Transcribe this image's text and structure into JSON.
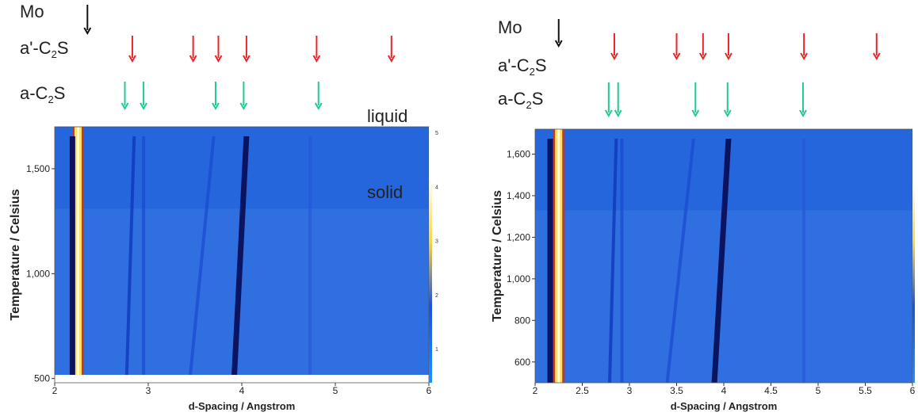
{
  "colors": {
    "mo_arrow": "#111111",
    "aprime_arrow": "#e8262a",
    "a_arrow": "#20c997",
    "map_background": "#2f6fe0"
  },
  "chart_data": [
    {
      "type": "heatmap",
      "panel": "left",
      "xlabel": "d-Spacing / Angstrom",
      "ylabel": "Temperature / Celsius",
      "xlim": [
        2,
        6
      ],
      "ylim": [
        480,
        1700
      ],
      "x_ticks": [
        "2",
        "3",
        "4",
        "5",
        "6"
      ],
      "y_ticks": [
        "500",
        "1,000",
        "1,500"
      ],
      "x_tick_values": [
        2,
        3,
        4,
        5,
        6
      ],
      "y_tick_values": [
        500,
        1000,
        1500
      ],
      "colorbar_ticks": [
        "1",
        "2",
        "3",
        "4",
        "5"
      ],
      "phase_labels": [
        "liquid",
        "solid"
      ],
      "marker_rows": [
        {
          "label_main": "Mo",
          "label_sub": "",
          "label_tail": "",
          "color": "#111111",
          "positions": [
            2.35
          ]
        },
        {
          "label_main": "a'-C",
          "label_sub": "2",
          "label_tail": "S",
          "color": "#e8262a",
          "positions": [
            2.83,
            3.48,
            3.75,
            4.05,
            4.8,
            5.6
          ]
        },
        {
          "label_main": "a-C",
          "label_sub": "2",
          "label_tail": "S",
          "color": "#20c997",
          "positions": [
            2.75,
            2.95,
            3.72,
            4.02,
            4.82
          ]
        }
      ],
      "bands": [
        {
          "d": 2.25,
          "d_top": 2.25,
          "intensity": 5
        },
        {
          "d": 2.19,
          "d_top": 2.19,
          "intensity": 2.5
        },
        {
          "d": 2.77,
          "d_top": 2.85,
          "intensity": 1.8
        },
        {
          "d": 2.95,
          "d_top": 2.95,
          "intensity": 0.9
        },
        {
          "d": 3.45,
          "d_top": 3.7,
          "intensity": 0.9
        },
        {
          "d": 3.92,
          "d_top": 4.05,
          "intensity": 2.2
        },
        {
          "d": 4.73,
          "d_top": 4.73,
          "intensity": 0.5
        }
      ]
    },
    {
      "type": "heatmap",
      "panel": "right",
      "xlabel": "d-Spacing / Angstrom",
      "ylabel": "Temperature / Celsius",
      "xlim": [
        2,
        6
      ],
      "ylim": [
        500,
        1720
      ],
      "x_ticks": [
        "2",
        "2.5",
        "3",
        "3.5",
        "4",
        "4.5",
        "5",
        "5.5",
        "6"
      ],
      "y_ticks": [
        "600",
        "800",
        "1,000",
        "1,200",
        "1,400",
        "1,600"
      ],
      "x_tick_values": [
        2,
        2.5,
        3,
        3.5,
        4,
        4.5,
        5,
        5.5,
        6
      ],
      "y_tick_values": [
        600,
        800,
        1000,
        1200,
        1400,
        1600
      ],
      "marker_rows": [
        {
          "label_main": "Mo",
          "label_sub": "",
          "label_tail": "",
          "color": "#111111",
          "positions": [
            2.25
          ]
        },
        {
          "label_main": "a'-C",
          "label_sub": "2",
          "label_tail": "S",
          "color": "#e8262a",
          "positions": [
            2.84,
            3.5,
            3.78,
            4.05,
            4.85,
            5.62
          ]
        },
        {
          "label_main": "a-C",
          "label_sub": "2",
          "label_tail": "S",
          "color": "#20c997",
          "positions": [
            2.78,
            2.88,
            3.7,
            4.04,
            4.84
          ]
        }
      ],
      "bands": [
        {
          "d": 2.25,
          "d_top": 2.25,
          "intensity": 5
        },
        {
          "d": 2.16,
          "d_top": 2.16,
          "intensity": 2.5
        },
        {
          "d": 2.79,
          "d_top": 2.86,
          "intensity": 1.8
        },
        {
          "d": 2.92,
          "d_top": 2.92,
          "intensity": 0.8
        },
        {
          "d": 3.4,
          "d_top": 3.68,
          "intensity": 0.8
        },
        {
          "d": 3.9,
          "d_top": 4.05,
          "intensity": 2.2
        },
        {
          "d": 4.85,
          "d_top": 4.85,
          "intensity": 0.4
        }
      ]
    }
  ]
}
